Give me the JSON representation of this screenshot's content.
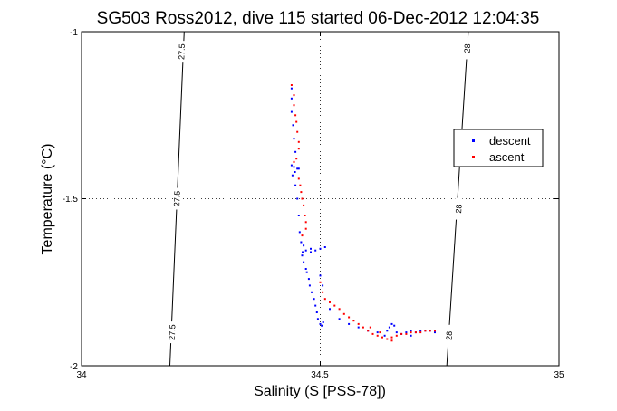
{
  "chart_data": {
    "type": "scatter",
    "title": "SG503 Ross2012, dive 115 started 06-Dec-2012 12:04:35",
    "xlabel": "Salinity (S [PSS-78])",
    "ylabel": "Temperature (°C)",
    "xlim": [
      34,
      35
    ],
    "ylim": [
      -2,
      -1
    ],
    "xticks": [
      "34",
      "34.5",
      "35"
    ],
    "yticks": [
      "-1",
      "-1.5",
      "-2"
    ],
    "grid": "dotted at ticks",
    "legend_position": "right",
    "colors": {
      "descent": "#0000ff",
      "ascent": "#ff0000",
      "axes": "#000000"
    },
    "density_contours": [
      {
        "label": "27.5",
        "line": [
          [
            34.185,
            -2.0
          ],
          [
            34.215,
            -1.0
          ]
        ],
        "label_positions": [
          [
            34.19,
            -1.9
          ],
          [
            34.2,
            -1.5
          ],
          [
            34.21,
            -1.06
          ]
        ]
      },
      {
        "label": "28",
        "line": [
          [
            34.765,
            -2.0
          ],
          [
            34.81,
            -1.0
          ]
        ],
        "label_positions": [
          [
            34.77,
            -1.91
          ],
          [
            34.79,
            -1.53
          ],
          [
            34.808,
            -1.05
          ]
        ]
      }
    ],
    "series": [
      {
        "name": "descent",
        "points": [
          [
            34.44,
            -1.17
          ],
          [
            34.44,
            -1.2
          ],
          [
            34.44,
            -1.24
          ],
          [
            34.443,
            -1.28
          ],
          [
            34.445,
            -1.32
          ],
          [
            34.448,
            -1.36
          ],
          [
            34.44,
            -1.4
          ],
          [
            34.445,
            -1.405
          ],
          [
            34.452,
            -1.41
          ],
          [
            34.447,
            -1.42
          ],
          [
            34.455,
            -1.41
          ],
          [
            34.442,
            -1.43
          ],
          [
            34.448,
            -1.46
          ],
          [
            34.452,
            -1.5
          ],
          [
            34.455,
            -1.55
          ],
          [
            34.457,
            -1.6
          ],
          [
            34.46,
            -1.63
          ],
          [
            34.465,
            -1.64
          ],
          [
            34.47,
            -1.655
          ],
          [
            34.48,
            -1.66
          ],
          [
            34.49,
            -1.655
          ],
          [
            34.5,
            -1.65
          ],
          [
            34.51,
            -1.645
          ],
          [
            34.48,
            -1.65
          ],
          [
            34.463,
            -1.66
          ],
          [
            34.462,
            -1.67
          ],
          [
            34.465,
            -1.69
          ],
          [
            34.47,
            -1.71
          ],
          [
            34.472,
            -1.72
          ],
          [
            34.476,
            -1.74
          ],
          [
            34.478,
            -1.76
          ],
          [
            34.482,
            -1.78
          ],
          [
            34.487,
            -1.8
          ],
          [
            34.49,
            -1.82
          ],
          [
            34.493,
            -1.84
          ],
          [
            34.495,
            -1.86
          ],
          [
            34.5,
            -1.875
          ],
          [
            34.503,
            -1.88
          ],
          [
            34.506,
            -1.87
          ],
          [
            34.5,
            -1.73
          ],
          [
            34.505,
            -1.76
          ],
          [
            34.52,
            -1.83
          ],
          [
            34.54,
            -1.86
          ],
          [
            34.56,
            -1.875
          ],
          [
            34.58,
            -1.885
          ],
          [
            34.6,
            -1.895
          ],
          [
            34.62,
            -1.9
          ],
          [
            34.64,
            -1.895
          ],
          [
            34.645,
            -1.885
          ],
          [
            34.65,
            -1.875
          ],
          [
            34.655,
            -1.88
          ],
          [
            34.66,
            -1.9
          ],
          [
            34.67,
            -1.905
          ],
          [
            34.68,
            -1.9
          ],
          [
            34.69,
            -1.895
          ],
          [
            34.7,
            -1.9
          ],
          [
            34.71,
            -1.895
          ],
          [
            34.72,
            -1.895
          ],
          [
            34.73,
            -1.895
          ],
          [
            34.74,
            -1.9
          ],
          [
            34.69,
            -1.91
          ],
          [
            34.635,
            -1.91
          ]
        ]
      },
      {
        "name": "ascent",
        "points": [
          [
            34.44,
            -1.16
          ],
          [
            34.445,
            -1.19
          ],
          [
            34.445,
            -1.22
          ],
          [
            34.448,
            -1.25
          ],
          [
            34.45,
            -1.27
          ],
          [
            34.452,
            -1.3
          ],
          [
            34.455,
            -1.33
          ],
          [
            34.455,
            -1.35
          ],
          [
            34.45,
            -1.38
          ],
          [
            34.445,
            -1.39
          ],
          [
            34.455,
            -1.44
          ],
          [
            34.458,
            -1.46
          ],
          [
            34.46,
            -1.48
          ],
          [
            34.462,
            -1.5
          ],
          [
            34.465,
            -1.52
          ],
          [
            34.468,
            -1.55
          ],
          [
            34.47,
            -1.57
          ],
          [
            34.47,
            -1.59
          ],
          [
            34.462,
            -1.61
          ],
          [
            34.5,
            -1.75
          ],
          [
            34.505,
            -1.78
          ],
          [
            34.51,
            -1.8
          ],
          [
            34.52,
            -1.81
          ],
          [
            34.53,
            -1.82
          ],
          [
            34.54,
            -1.83
          ],
          [
            34.55,
            -1.845
          ],
          [
            34.56,
            -1.855
          ],
          [
            34.57,
            -1.865
          ],
          [
            34.58,
            -1.875
          ],
          [
            34.59,
            -1.885
          ],
          [
            34.6,
            -1.895
          ],
          [
            34.61,
            -1.905
          ],
          [
            34.62,
            -1.91
          ],
          [
            34.63,
            -1.915
          ],
          [
            34.64,
            -1.92
          ],
          [
            34.65,
            -1.915
          ],
          [
            34.66,
            -1.91
          ],
          [
            34.67,
            -1.905
          ],
          [
            34.68,
            -1.905
          ],
          [
            34.69,
            -1.9
          ],
          [
            34.7,
            -1.9
          ],
          [
            34.71,
            -1.9
          ],
          [
            34.72,
            -1.895
          ],
          [
            34.73,
            -1.895
          ],
          [
            34.74,
            -1.895
          ],
          [
            34.65,
            -1.925
          ],
          [
            34.625,
            -1.9
          ],
          [
            34.605,
            -1.885
          ]
        ]
      }
    ]
  }
}
